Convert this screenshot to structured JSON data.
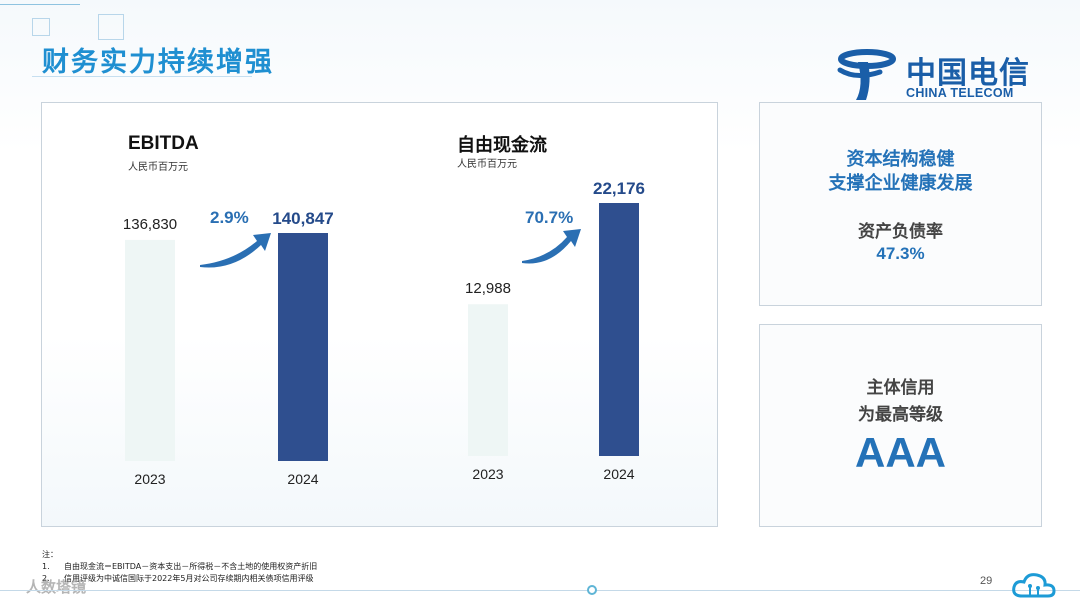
{
  "page": {
    "title": "财务实力持续增强",
    "page_number": "29",
    "watermark": "人数塔镜"
  },
  "logo": {
    "cn": "中国电信",
    "en": "CHINA TELECOM"
  },
  "chart_data": [
    {
      "type": "bar",
      "title": "EBITDA",
      "unit": "人民币百万元",
      "categories": [
        "2023",
        "2024"
      ],
      "values": [
        136830,
        140847
      ],
      "value_labels": [
        "136,830",
        "140,847"
      ],
      "growth_label": "2.9%",
      "colors": [
        "#eef6f5",
        "#2f4f8f"
      ]
    },
    {
      "type": "bar",
      "title": "自由现金流",
      "unit": "人民币百万元",
      "categories": [
        "2023",
        "2024"
      ],
      "values": [
        12988,
        22176
      ],
      "value_labels": [
        "12,988",
        "22,176"
      ],
      "growth_label": "70.7%",
      "colors": [
        "#eef6f5",
        "#2f4f8f"
      ]
    }
  ],
  "side_panels": {
    "capital": {
      "line1": "资本结构稳健",
      "line2": "支撑企业健康发展",
      "label": "资产负债率",
      "value": "47.3%"
    },
    "credit": {
      "line1": "主体信用",
      "line2": "为最高等级",
      "rating": "AAA"
    }
  },
  "notes": {
    "header": "注：",
    "items": [
      {
        "num": "1.",
        "text": "自由现金流＝EBITDA－资本支出－所得税－不含土地的使用权资产折旧"
      },
      {
        "num": "2.",
        "text": "信用评级为中诚信国际于2022年5月对公司存续期内相关债项信用评级"
      }
    ]
  },
  "colors": {
    "accent": "#1f8fd1",
    "bar_2024": "#2f4f8f",
    "bar_2023": "#eef6f5",
    "highlight": "#2472b8"
  }
}
